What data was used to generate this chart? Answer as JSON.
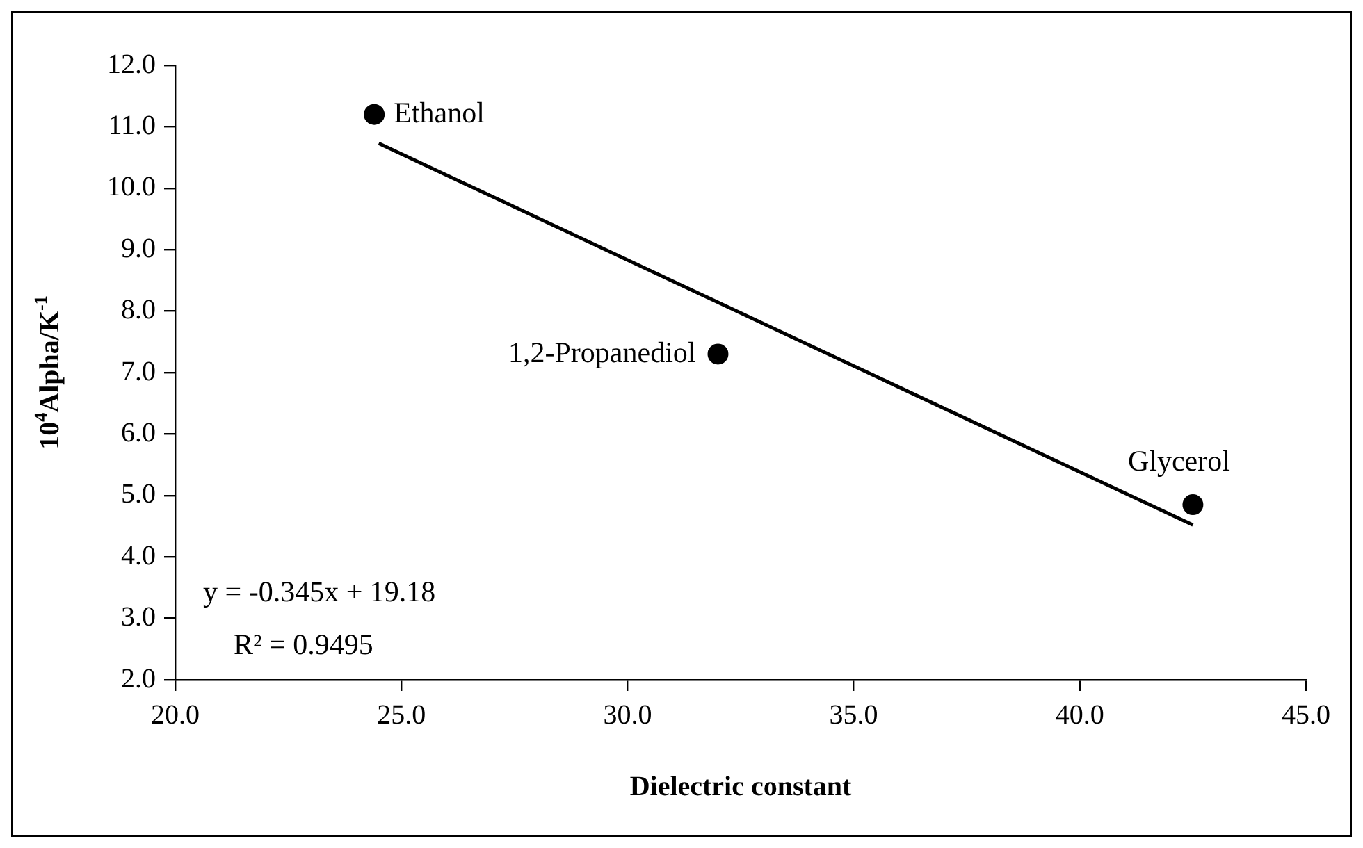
{
  "chart_data": {
    "type": "scatter",
    "xlabel": "Dielectric constant",
    "ylabel": "10$^{4}$Alpha/K$^{-1}$",
    "x": [
      24.4,
      32.0,
      42.5
    ],
    "series": [
      {
        "color": "#000000",
        "values": [
          11.2,
          7.3,
          4.85
        ],
        "marker": "circle"
      },
      {
        "type": "line",
        "color": "#000000",
        "x": [
          24.5,
          42.5
        ],
        "values": [
          10.73,
          4.52
        ],
        "marker": "none",
        "line_style": "solid"
      }
    ],
    "xlim": [
      20,
      45
    ],
    "ylim": [
      2,
      12
    ],
    "xticks": [
      {
        "value": 20,
        "label": "20.0"
      },
      {
        "value": 25,
        "label": "25.0"
      },
      {
        "value": 30,
        "label": "30.0"
      },
      {
        "value": 35,
        "label": "35.0"
      },
      {
        "value": 40,
        "label": "40.0"
      },
      {
        "value": 45,
        "label": "45.0"
      }
    ],
    "yticks": [
      {
        "value": 2,
        "label": "2.0"
      },
      {
        "value": 3,
        "label": "3.0"
      },
      {
        "value": 4,
        "label": "4.0"
      },
      {
        "value": 5,
        "label": "5.0"
      },
      {
        "value": 6,
        "label": "6.0"
      },
      {
        "value": 7,
        "label": "7.0"
      },
      {
        "value": 8,
        "label": "8.0"
      },
      {
        "value": 9,
        "label": "9.0"
      },
      {
        "value": 10,
        "label": "10.0"
      },
      {
        "value": 11,
        "label": "11.0"
      },
      {
        "value": 12,
        "label": "12.0"
      }
    ],
    "annotations": [
      {
        "text": "Ethanol",
        "x": 24.4,
        "y": 11.2
      },
      {
        "text": "1,2-Propanediol",
        "x": 32.0,
        "y": 7.3
      },
      {
        "text": "Glycerol",
        "x": 42.5,
        "y": 4.85
      },
      "y = -0.345x + 19.18",
      "R² = 0.9495"
    ],
    "grid": false,
    "legend": false
  }
}
